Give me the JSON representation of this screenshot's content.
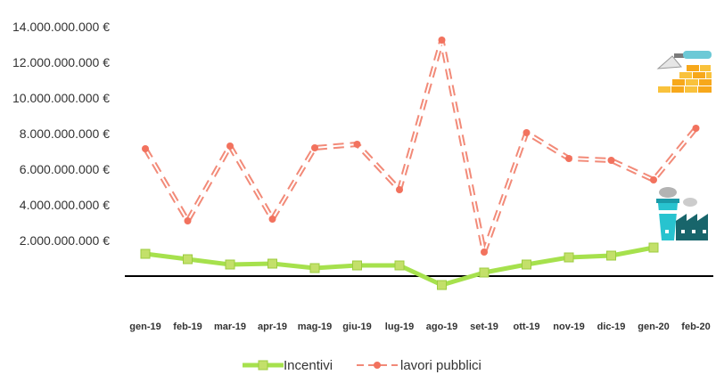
{
  "chart_data": {
    "type": "line",
    "categories": [
      "gen-19",
      "feb-19",
      "mar-19",
      "apr-19",
      "mag-19",
      "giu-19",
      "lug-19",
      "ago-19",
      "set-19",
      "ott-19",
      "nov-19",
      "dic-19",
      "gen-20",
      "feb-20"
    ],
    "y_ticks": [
      "14.000.000.000 €",
      "12.000.000.000 €",
      "10.000.000.000 €",
      "8.000.000.000 €",
      "6.000.000.000 €",
      "4.000.000.000 €",
      "2.000.000.000 €"
    ],
    "ylim": [
      -2000000000,
      14000000000
    ],
    "series": [
      {
        "name": "Incentivi",
        "color": "#a6e14d",
        "marker_color": "#c3e06a",
        "values": [
          1250000000,
          950000000,
          650000000,
          700000000,
          450000000,
          600000000,
          600000000,
          -500000000,
          200000000,
          650000000,
          1050000000,
          1150000000,
          1600000000,
          null
        ]
      },
      {
        "name": "lavori pubblici",
        "color": "#f28a78",
        "marker_color": "#f2725e",
        "values": [
          7150000000,
          3100000000,
          7300000000,
          3200000000,
          7200000000,
          7400000000,
          4850000000,
          13250000000,
          1350000000,
          8050000000,
          6600000000,
          6500000000,
          5400000000,
          8300000000
        ]
      }
    ],
    "legend_position": "bottom",
    "icons": [
      "trowel-bricks-icon",
      "factory-icon"
    ]
  }
}
